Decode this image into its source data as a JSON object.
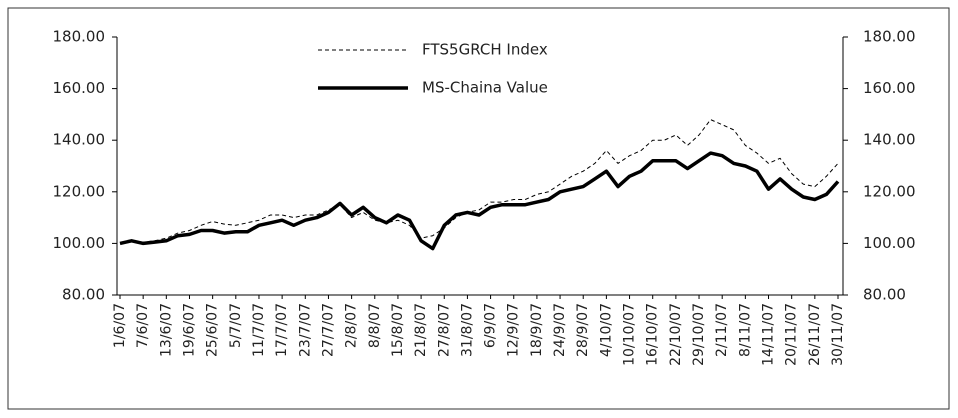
{
  "chart_data": {
    "type": "line",
    "categories": [
      "1/6/07",
      null,
      "7/6/07",
      null,
      "13/6/07",
      null,
      "19/6/07",
      null,
      "25/6/07",
      null,
      "5/7/07",
      null,
      "11/7/07",
      null,
      "17/7/07",
      null,
      "23/7/07",
      null,
      "27/7/07",
      null,
      "2/8/07",
      null,
      "8/8/07",
      null,
      "15/8/07",
      null,
      "21/8/07",
      null,
      "27/8/07",
      null,
      "31/8/07",
      null,
      "6/9/07",
      null,
      "12/9/07",
      null,
      "18/9/07",
      null,
      "24/9/07",
      null,
      "28/9/07",
      null,
      "4/10/07",
      null,
      "10/10/07",
      null,
      "16/10/07",
      null,
      "22/10/07",
      null,
      "29/10/07",
      null,
      "2/11/07",
      null,
      "8/11/07",
      null,
      "14/11/07",
      null,
      "20/11/07",
      null,
      "26/11/07",
      null,
      "30/11/07"
    ],
    "series": [
      {
        "name": "FTS5GRCH Index",
        "color": "#000000",
        "style": "dashed",
        "values": [
          100,
          101,
          100.5,
          101,
          102,
          104,
          105,
          107,
          108.5,
          107.5,
          107,
          108,
          109,
          111,
          111,
          110,
          111,
          111,
          113,
          115,
          110,
          112,
          109,
          108,
          109,
          107,
          102,
          103,
          106,
          110,
          112,
          113,
          116,
          116,
          117,
          117,
          119,
          120,
          123,
          126,
          128,
          131,
          136,
          131,
          134,
          136,
          140,
          140,
          142,
          138,
          142,
          148,
          146,
          144,
          138,
          135,
          131,
          133,
          127,
          123,
          122,
          126,
          131
        ]
      },
      {
        "name": "MS-Chaina Value",
        "color": "#000000",
        "style": "solid",
        "values": [
          100,
          101,
          100,
          100.5,
          101,
          103,
          103.5,
          105,
          105,
          104,
          104.5,
          104.5,
          107,
          108,
          109,
          107,
          109,
          110,
          112,
          115.5,
          111,
          114,
          110,
          108,
          111,
          109,
          101,
          98,
          107,
          111,
          112,
          111,
          114,
          115,
          115,
          115,
          116,
          117,
          120,
          121,
          122,
          125,
          128,
          122,
          126,
          128,
          132,
          132,
          132,
          129,
          132,
          135,
          134,
          131,
          130,
          128,
          121,
          125,
          121,
          118,
          117,
          119,
          124
        ]
      }
    ],
    "ylim": [
      80,
      180
    ],
    "yticks": [
      {
        "value": 80,
        "label": "80.00"
      },
      {
        "value": 100,
        "label": "100.00"
      },
      {
        "value": 120,
        "label": "120.00"
      },
      {
        "value": 140,
        "label": "140.00"
      },
      {
        "value": 160,
        "label": "160.00"
      },
      {
        "value": 180,
        "label": "180.00"
      }
    ],
    "y2lim": [
      80,
      180
    ],
    "y2ticks": [
      {
        "value": 80,
        "label": "80.00"
      },
      {
        "value": 100,
        "label": "100.00"
      },
      {
        "value": 120,
        "label": "120.00"
      },
      {
        "value": 140,
        "label": "140.00"
      },
      {
        "value": 160,
        "label": "160.00"
      },
      {
        "value": 180,
        "label": "180.00"
      }
    ],
    "grid": false,
    "legend": "top-left"
  }
}
